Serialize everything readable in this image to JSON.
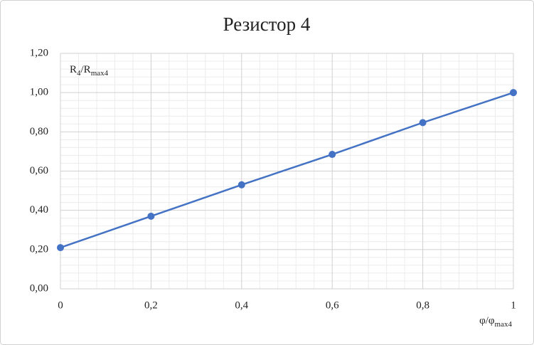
{
  "chart_data": {
    "type": "line",
    "title": "Резистор 4",
    "x_label": [
      "φ/φ",
      "max4"
    ],
    "y_label": [
      "R",
      "4",
      "/R",
      "max4"
    ],
    "x": [
      0,
      0.2,
      0.4,
      0.6,
      0.8,
      1
    ],
    "series": [
      {
        "name": "Резистор 4",
        "color": "#4472c4",
        "values": [
          0.21,
          0.37,
          0.53,
          0.685,
          0.847,
          1.0
        ]
      }
    ],
    "xlim": [
      0,
      1
    ],
    "xticks": [
      0,
      {
        "value": 0.2,
        "label": "0,2"
      },
      {
        "value": 0.4,
        "label": "0,4"
      },
      {
        "value": 0.6,
        "label": "0,6"
      },
      {
        "value": 0.8,
        "label": "0,8"
      },
      1
    ],
    "ylim": [
      0,
      1.2
    ],
    "yticks": [
      {
        "value": 0,
        "label": "0,00"
      },
      {
        "value": 0.2,
        "label": "0,20"
      },
      {
        "value": 0.4,
        "label": "0,40"
      },
      {
        "value": 0.6,
        "label": "0,60"
      },
      {
        "value": 0.8,
        "label": "0,80"
      },
      {
        "value": 1.0,
        "label": "1,00"
      },
      {
        "value": 1.2,
        "label": "1,20"
      }
    ],
    "grid": true,
    "minor_grid_divisions": 5
  }
}
